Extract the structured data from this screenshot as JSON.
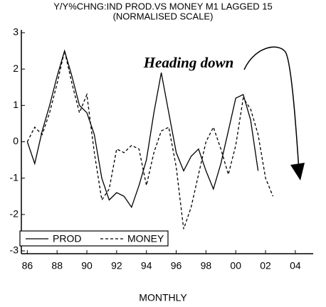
{
  "chart_data": {
    "type": "line",
    "title": "Y/Y%CHNG:IND PROD.VS MONEY M1 LAGGED 15",
    "subtitle": "(NORMALISED SCALE)",
    "xlabel": "MONTHLY",
    "annotation": "Heading down",
    "x": [
      86,
      86.5,
      87,
      87.5,
      88,
      88.5,
      89,
      89.5,
      90,
      90.5,
      91,
      91.5,
      92,
      92.5,
      93,
      93.5,
      94,
      94.5,
      95,
      95.5,
      96,
      96.5,
      97,
      97.5,
      98,
      98.5,
      99,
      99.5,
      100,
      100.5,
      101,
      101.5,
      102,
      102.5
    ],
    "series": [
      {
        "name": "PROD",
        "color": "#000000",
        "dash": "solid",
        "values": [
          0.0,
          -0.6,
          0.3,
          1.0,
          1.8,
          2.5,
          1.8,
          1.0,
          0.8,
          0.2,
          -1.0,
          -1.6,
          -1.4,
          -1.5,
          -1.8,
          -1.2,
          -0.5,
          0.8,
          1.9,
          0.8,
          -0.3,
          -0.8,
          -0.4,
          -0.2,
          -0.8,
          -1.3,
          -0.6,
          0.3,
          1.2,
          1.3,
          0.6,
          -0.8,
          null,
          null
        ]
      },
      {
        "name": "MONEY",
        "color": "#000000",
        "dash": "dashed",
        "values": [
          0.0,
          0.4,
          0.2,
          0.8,
          1.6,
          2.5,
          1.6,
          0.8,
          1.3,
          -0.3,
          -1.6,
          -1.3,
          -0.2,
          -0.3,
          -0.1,
          -0.2,
          -1.2,
          -0.3,
          0.3,
          0.4,
          -0.7,
          -2.4,
          -1.8,
          -0.9,
          0.0,
          0.4,
          -0.2,
          -0.9,
          -0.1,
          1.2,
          0.9,
          0.2,
          -1.0,
          -1.5
        ]
      }
    ],
    "xlim": [
      85.6,
      105.2
    ],
    "xticks": [
      86,
      88,
      90,
      92,
      94,
      96,
      98,
      {
        "value": 100,
        "label": "00"
      },
      {
        "value": 102,
        "label": "02"
      },
      {
        "value": 104,
        "label": "04"
      }
    ],
    "ylim": [
      -3,
      3
    ],
    "yticks": [
      -3,
      -2,
      -1,
      0,
      1,
      2,
      3
    ],
    "grid": false,
    "legend": "bottom-left"
  }
}
